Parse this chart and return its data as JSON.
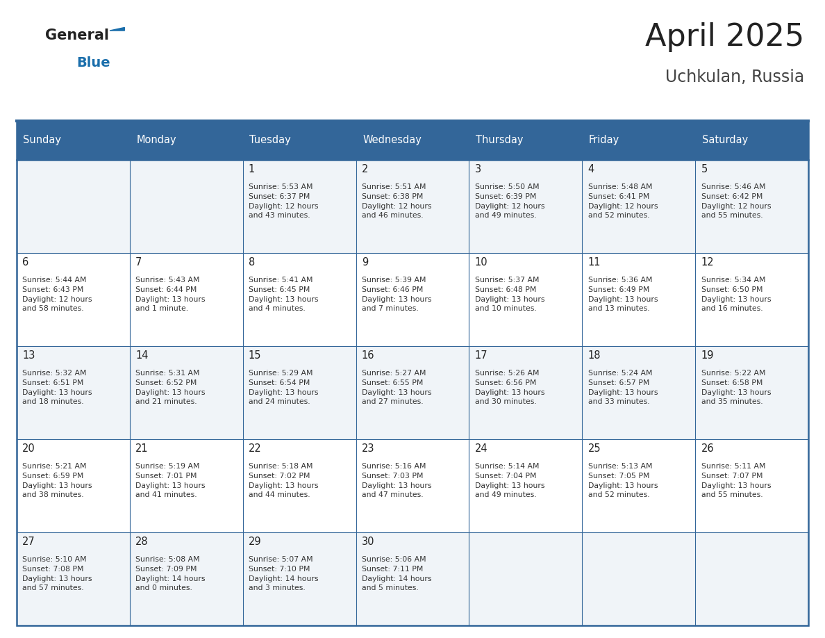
{
  "title": "April 2025",
  "subtitle": "Uchkulan, Russia",
  "days_of_week": [
    "Sunday",
    "Monday",
    "Tuesday",
    "Wednesday",
    "Thursday",
    "Friday",
    "Saturday"
  ],
  "header_bg": "#336699",
  "header_text_color": "#ffffff",
  "cell_bg_even": "#f0f4f8",
  "cell_bg_odd": "#ffffff",
  "border_color": "#336699",
  "title_color": "#222222",
  "subtitle_color": "#444444",
  "day_num_color": "#222222",
  "cell_text_color": "#333333",
  "logo_general_color": "#222222",
  "logo_blue_color": "#1a6eab",
  "weeks": [
    [
      {
        "day": 0,
        "text": ""
      },
      {
        "day": 0,
        "text": ""
      },
      {
        "day": 1,
        "text": "Sunrise: 5:53 AM\nSunset: 6:37 PM\nDaylight: 12 hours\nand 43 minutes."
      },
      {
        "day": 2,
        "text": "Sunrise: 5:51 AM\nSunset: 6:38 PM\nDaylight: 12 hours\nand 46 minutes."
      },
      {
        "day": 3,
        "text": "Sunrise: 5:50 AM\nSunset: 6:39 PM\nDaylight: 12 hours\nand 49 minutes."
      },
      {
        "day": 4,
        "text": "Sunrise: 5:48 AM\nSunset: 6:41 PM\nDaylight: 12 hours\nand 52 minutes."
      },
      {
        "day": 5,
        "text": "Sunrise: 5:46 AM\nSunset: 6:42 PM\nDaylight: 12 hours\nand 55 minutes."
      }
    ],
    [
      {
        "day": 6,
        "text": "Sunrise: 5:44 AM\nSunset: 6:43 PM\nDaylight: 12 hours\nand 58 minutes."
      },
      {
        "day": 7,
        "text": "Sunrise: 5:43 AM\nSunset: 6:44 PM\nDaylight: 13 hours\nand 1 minute."
      },
      {
        "day": 8,
        "text": "Sunrise: 5:41 AM\nSunset: 6:45 PM\nDaylight: 13 hours\nand 4 minutes."
      },
      {
        "day": 9,
        "text": "Sunrise: 5:39 AM\nSunset: 6:46 PM\nDaylight: 13 hours\nand 7 minutes."
      },
      {
        "day": 10,
        "text": "Sunrise: 5:37 AM\nSunset: 6:48 PM\nDaylight: 13 hours\nand 10 minutes."
      },
      {
        "day": 11,
        "text": "Sunrise: 5:36 AM\nSunset: 6:49 PM\nDaylight: 13 hours\nand 13 minutes."
      },
      {
        "day": 12,
        "text": "Sunrise: 5:34 AM\nSunset: 6:50 PM\nDaylight: 13 hours\nand 16 minutes."
      }
    ],
    [
      {
        "day": 13,
        "text": "Sunrise: 5:32 AM\nSunset: 6:51 PM\nDaylight: 13 hours\nand 18 minutes."
      },
      {
        "day": 14,
        "text": "Sunrise: 5:31 AM\nSunset: 6:52 PM\nDaylight: 13 hours\nand 21 minutes."
      },
      {
        "day": 15,
        "text": "Sunrise: 5:29 AM\nSunset: 6:54 PM\nDaylight: 13 hours\nand 24 minutes."
      },
      {
        "day": 16,
        "text": "Sunrise: 5:27 AM\nSunset: 6:55 PM\nDaylight: 13 hours\nand 27 minutes."
      },
      {
        "day": 17,
        "text": "Sunrise: 5:26 AM\nSunset: 6:56 PM\nDaylight: 13 hours\nand 30 minutes."
      },
      {
        "day": 18,
        "text": "Sunrise: 5:24 AM\nSunset: 6:57 PM\nDaylight: 13 hours\nand 33 minutes."
      },
      {
        "day": 19,
        "text": "Sunrise: 5:22 AM\nSunset: 6:58 PM\nDaylight: 13 hours\nand 35 minutes."
      }
    ],
    [
      {
        "day": 20,
        "text": "Sunrise: 5:21 AM\nSunset: 6:59 PM\nDaylight: 13 hours\nand 38 minutes."
      },
      {
        "day": 21,
        "text": "Sunrise: 5:19 AM\nSunset: 7:01 PM\nDaylight: 13 hours\nand 41 minutes."
      },
      {
        "day": 22,
        "text": "Sunrise: 5:18 AM\nSunset: 7:02 PM\nDaylight: 13 hours\nand 44 minutes."
      },
      {
        "day": 23,
        "text": "Sunrise: 5:16 AM\nSunset: 7:03 PM\nDaylight: 13 hours\nand 47 minutes."
      },
      {
        "day": 24,
        "text": "Sunrise: 5:14 AM\nSunset: 7:04 PM\nDaylight: 13 hours\nand 49 minutes."
      },
      {
        "day": 25,
        "text": "Sunrise: 5:13 AM\nSunset: 7:05 PM\nDaylight: 13 hours\nand 52 minutes."
      },
      {
        "day": 26,
        "text": "Sunrise: 5:11 AM\nSunset: 7:07 PM\nDaylight: 13 hours\nand 55 minutes."
      }
    ],
    [
      {
        "day": 27,
        "text": "Sunrise: 5:10 AM\nSunset: 7:08 PM\nDaylight: 13 hours\nand 57 minutes."
      },
      {
        "day": 28,
        "text": "Sunrise: 5:08 AM\nSunset: 7:09 PM\nDaylight: 14 hours\nand 0 minutes."
      },
      {
        "day": 29,
        "text": "Sunrise: 5:07 AM\nSunset: 7:10 PM\nDaylight: 14 hours\nand 3 minutes."
      },
      {
        "day": 30,
        "text": "Sunrise: 5:06 AM\nSunset: 7:11 PM\nDaylight: 14 hours\nand 5 minutes."
      },
      {
        "day": 0,
        "text": ""
      },
      {
        "day": 0,
        "text": ""
      },
      {
        "day": 0,
        "text": ""
      }
    ]
  ]
}
